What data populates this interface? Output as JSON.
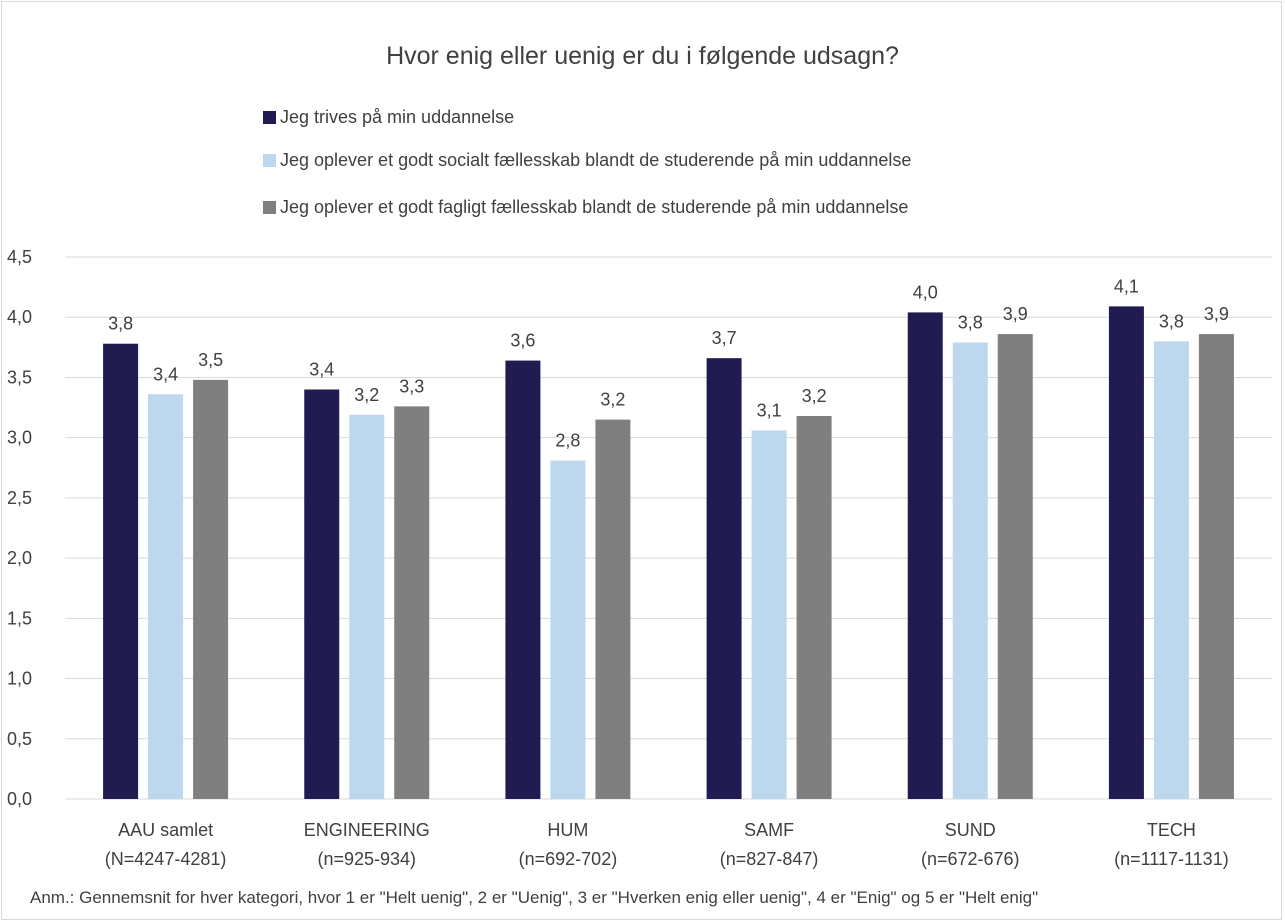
{
  "chart_data": {
    "type": "bar",
    "title": "Hvor enig eller uenig er du i følgende udsagn?",
    "categories": [
      "AAU samlet",
      "ENGINEERING",
      "HUM",
      "SAMF",
      "SUND",
      "TECH"
    ],
    "category_sublabels": [
      "(N=4247-4281)",
      "(n=925-934)",
      "(n=692-702)",
      "(n=827-847)",
      "(n=672-676)",
      "(n=1117-1131)"
    ],
    "series": [
      {
        "name": "Jeg trives på min uddannelse",
        "color": "#201b50",
        "values": [
          3.78,
          3.4,
          3.64,
          3.66,
          4.04,
          4.09
        ],
        "labels": [
          "3,8",
          "3,4",
          "3,6",
          "3,7",
          "4,0",
          "4,1"
        ]
      },
      {
        "name": "Jeg oplever et godt socialt fællesskab blandt de studerende på min uddannelse",
        "color": "#bdd7ee",
        "values": [
          3.36,
          3.19,
          2.81,
          3.06,
          3.79,
          3.8
        ],
        "labels": [
          "3,4",
          "3,2",
          "2,8",
          "3,1",
          "3,8",
          "3,8"
        ]
      },
      {
        "name": "Jeg oplever et godt fagligt fællesskab blandt de studerende på min uddannelse",
        "color": "#7f7f7f",
        "values": [
          3.48,
          3.26,
          3.15,
          3.18,
          3.86,
          3.86
        ],
        "labels": [
          "3,5",
          "3,3",
          "3,2",
          "3,2",
          "3,9",
          "3,9"
        ]
      }
    ],
    "ylim": [
      0,
      4.5
    ],
    "yticks": [
      "0,0",
      "0,5",
      "1,0",
      "1,5",
      "2,0",
      "2,5",
      "3,0",
      "3,5",
      "4,0",
      "4,5"
    ],
    "grid": true,
    "legend_position": "top",
    "xlabel": "",
    "ylabel": "",
    "note": "Anm.: Gennemsnit for hver kategori, hvor 1 er \"Helt uenig\", 2 er \"Uenig\", 3 er \"Hverken enig eller uenig\", 4 er \"Enig\" og 5 er \"Helt enig\""
  }
}
